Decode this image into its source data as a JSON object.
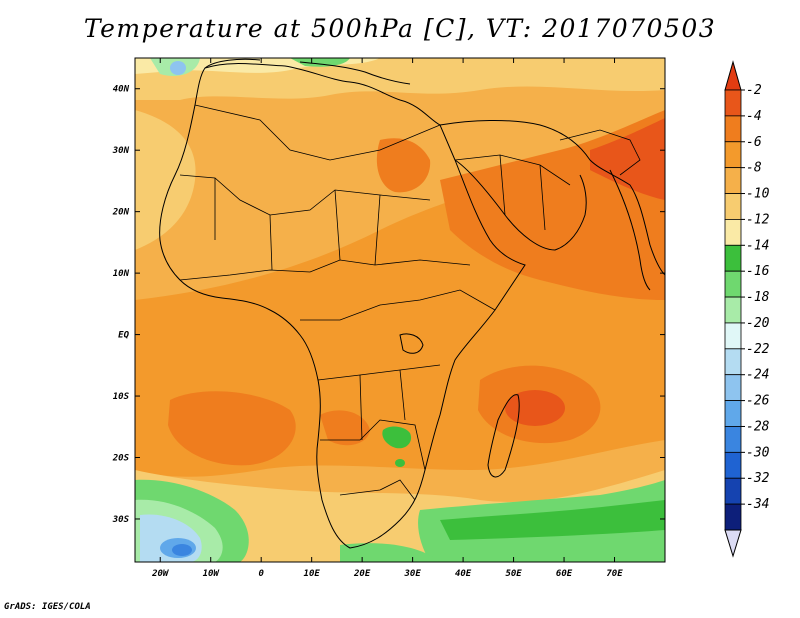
{
  "title": "Temperature at 500hPa [C], VT: 2017070503",
  "footer": "GrADS: IGES/COLA",
  "map": {
    "region": "Africa, Arabian Peninsula and western Indian Ocean",
    "variable": "Temperature at 500hPa",
    "units": "C",
    "valid_time": "2017070503",
    "lon_range": [
      -25,
      80
    ],
    "lat_range": [
      -37,
      45
    ],
    "x_ticks": [
      {
        "lon": -20,
        "label": "20W"
      },
      {
        "lon": -10,
        "label": "10W"
      },
      {
        "lon": 0,
        "label": "0"
      },
      {
        "lon": 10,
        "label": "10E"
      },
      {
        "lon": 20,
        "label": "20E"
      },
      {
        "lon": 30,
        "label": "30E"
      },
      {
        "lon": 40,
        "label": "40E"
      },
      {
        "lon": 50,
        "label": "50E"
      },
      {
        "lon": 60,
        "label": "60E"
      },
      {
        "lon": 70,
        "label": "70E"
      }
    ],
    "y_ticks": [
      {
        "lat": 40,
        "label": "40N"
      },
      {
        "lat": 30,
        "label": "30N"
      },
      {
        "lat": 20,
        "label": "20N"
      },
      {
        "lat": 10,
        "label": "10N"
      },
      {
        "lat": 0,
        "label": "EQ"
      },
      {
        "lat": -10,
        "label": "10S"
      },
      {
        "lat": -20,
        "label": "20S"
      },
      {
        "lat": -30,
        "label": "30S"
      }
    ],
    "colorbar": {
      "extend": "both",
      "levels": [
        {
          "label": "-2",
          "color": "#e8561a"
        },
        {
          "label": "-4",
          "color": "#ef7d1e"
        },
        {
          "label": "-6",
          "color": "#f39a2c"
        },
        {
          "label": "-8",
          "color": "#f5b04a"
        },
        {
          "label": "-10",
          "color": "#f7cc70"
        },
        {
          "label": "-12",
          "color": "#faeaa6"
        },
        {
          "label": "-14",
          "color": "#3cbf3c"
        },
        {
          "label": "-16",
          "color": "#6fd86f"
        },
        {
          "label": "-18",
          "color": "#a8eba8"
        },
        {
          "label": "-20",
          "color": "#e0f7f7"
        },
        {
          "label": "-22",
          "color": "#b4dcf2"
        },
        {
          "label": "-24",
          "color": "#8ec4ef"
        },
        {
          "label": "-26",
          "color": "#60a8ea"
        },
        {
          "label": "-28",
          "color": "#3a85e0"
        },
        {
          "label": "-30",
          "color": "#1f63d2"
        },
        {
          "label": "-32",
          "color": "#1543b0"
        },
        {
          "label": "-34",
          "color": "#0d1f7a"
        }
      ],
      "top_arrow_color": "#e23c12",
      "bottom_arrow_color": "#dcdcf5"
    },
    "features": [
      {
        "name": "warm-core-arabia-india",
        "color": "#e8561a"
      },
      {
        "name": "warm-core-sahara",
        "color": "#ef7d1e"
      },
      {
        "name": "cold-pool-south-atlantic",
        "color": "#3a85e0"
      },
      {
        "name": "cold-pool-zimbabwe",
        "color": "#3cbf3c"
      }
    ]
  }
}
